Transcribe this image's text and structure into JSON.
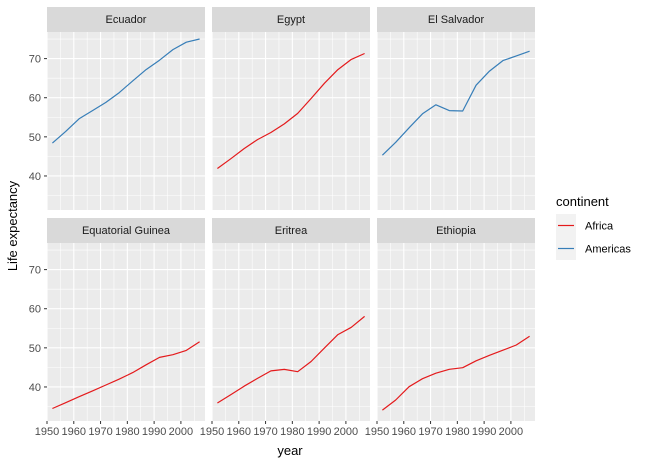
{
  "chart_data": {
    "type": "line",
    "xlabel": "year",
    "ylabel": "Life expectancy",
    "xlim": [
      1950,
      2009
    ],
    "ylim": [
      31.3,
      76.8
    ],
    "xticks": [
      1950,
      1960,
      1970,
      1980,
      1990,
      2000
    ],
    "xtick_labels": [
      "1950",
      "1960",
      "1970",
      "1980",
      "1990",
      "2000"
    ],
    "yticks": [
      40,
      50,
      60,
      70
    ],
    "ytick_labels": [
      "40",
      "50",
      "60",
      "70"
    ],
    "grid": true,
    "legend": {
      "title": "continent",
      "position": "right",
      "items": [
        {
          "label": "Africa",
          "color": "#e41a1c"
        },
        {
          "label": "Americas",
          "color": "#377eb8"
        }
      ]
    },
    "x": [
      1952,
      1957,
      1962,
      1967,
      1972,
      1977,
      1982,
      1987,
      1992,
      1997,
      2002,
      2007
    ],
    "panels": [
      {
        "country": "Ecuador",
        "continent": "Americas",
        "values": [
          48.4,
          51.4,
          54.6,
          56.7,
          58.8,
          61.3,
          64.3,
          67.2,
          69.6,
          72.3,
          74.2,
          75.0
        ]
      },
      {
        "country": "Egypt",
        "continent": "Africa",
        "values": [
          41.9,
          44.4,
          47.0,
          49.3,
          51.1,
          53.3,
          56.0,
          59.8,
          63.7,
          67.2,
          69.8,
          71.3
        ]
      },
      {
        "country": "El Salvador",
        "continent": "Americas",
        "values": [
          45.3,
          48.6,
          52.3,
          55.9,
          58.2,
          56.7,
          56.6,
          63.2,
          66.8,
          69.5,
          70.7,
          71.9
        ]
      },
      {
        "country": "Equatorial Guinea",
        "continent": "Africa",
        "values": [
          34.5,
          35.98,
          37.5,
          38.99,
          40.5,
          42.02,
          43.66,
          45.66,
          47.55,
          48.25,
          49.35,
          51.58
        ]
      },
      {
        "country": "Eritrea",
        "continent": "Africa",
        "values": [
          35.9,
          38.0,
          40.2,
          42.2,
          44.1,
          44.5,
          43.9,
          46.5,
          49.99,
          53.38,
          55.24,
          58.04
        ]
      },
      {
        "country": "Ethiopia",
        "continent": "Africa",
        "values": [
          34.08,
          36.67,
          40.06,
          42.12,
          43.52,
          44.51,
          44.92,
          46.68,
          48.09,
          49.4,
          50.73,
          52.95
        ]
      }
    ]
  }
}
